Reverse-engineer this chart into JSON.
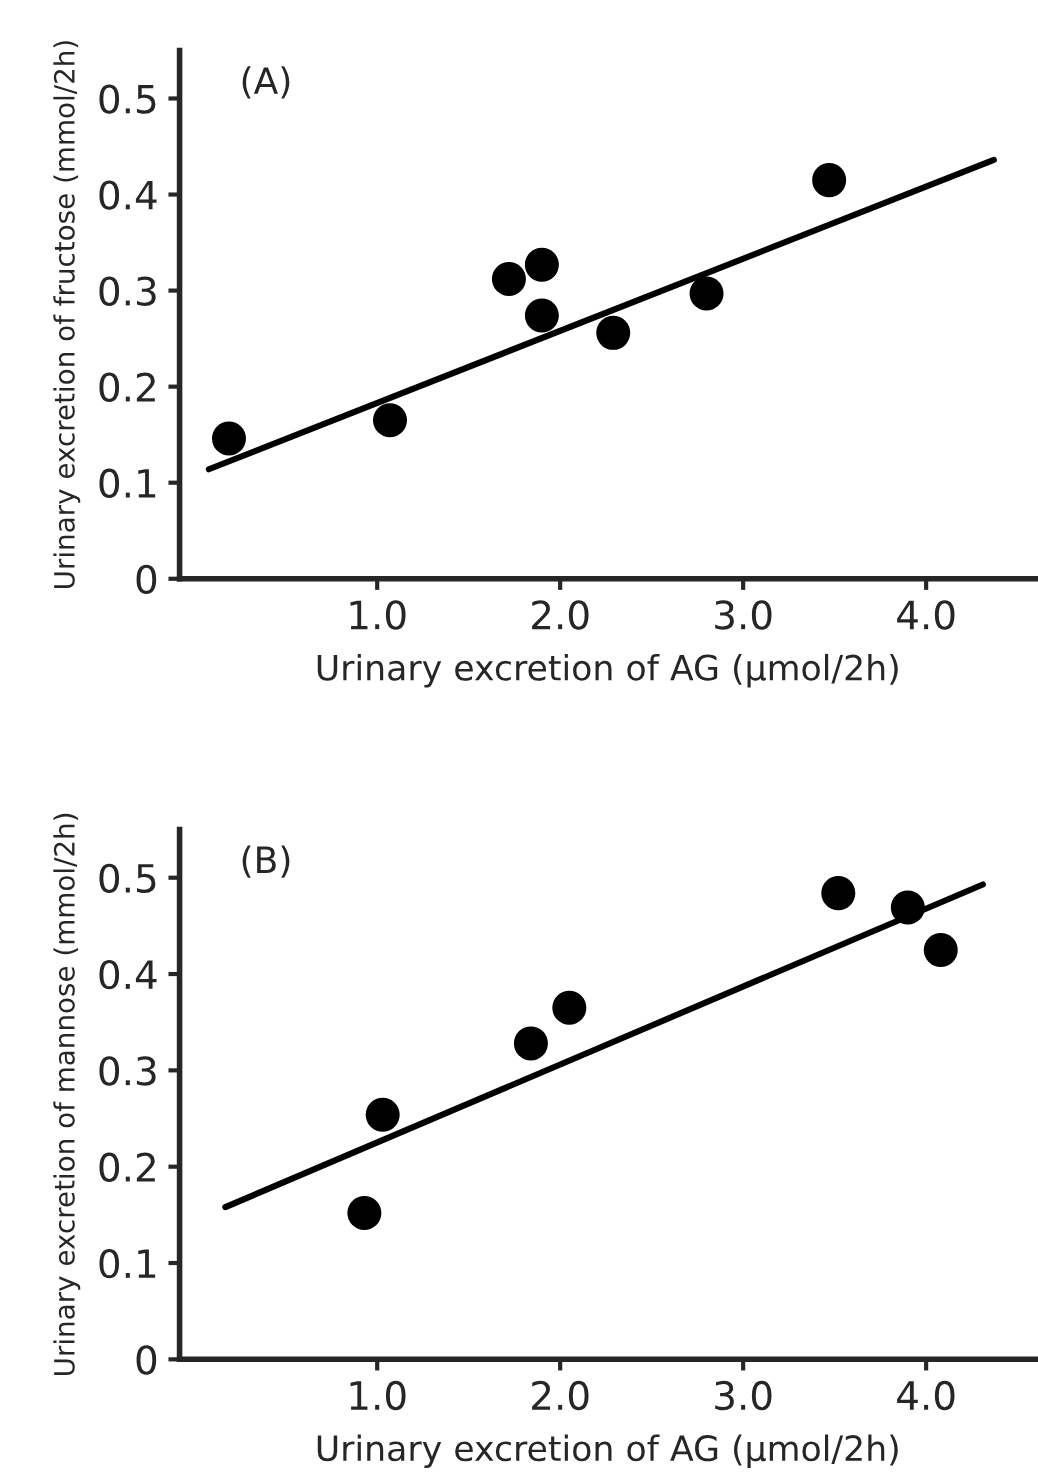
{
  "chart_data": [
    {
      "type": "scatter",
      "title": "(A)",
      "xlabel": "Urinary excretion of AG (μmol/2h)",
      "ylabel": "Urinary excretion of fructose (mmol/2h)",
      "xlim": [
        -0.08,
        4.6
      ],
      "ylim": [
        0,
        0.55
      ],
      "xticks": [
        {
          "value": 1,
          "label": "1.0"
        },
        {
          "value": 2,
          "label": "2.0"
        },
        {
          "value": 3,
          "label": "3.0"
        },
        {
          "value": 4,
          "label": "4.0"
        }
      ],
      "yticks": [
        0,
        0.1,
        0.2,
        0.3,
        0.4,
        0.5
      ],
      "series": [
        {
          "color": "#000000",
          "marker": "circle",
          "x": [
            0.19,
            1.07,
            1.72,
            1.9,
            1.9,
            2.29,
            2.8,
            3.47
          ],
          "values": [
            0.146,
            0.165,
            0.312,
            0.327,
            0.274,
            0.256,
            0.297,
            0.415
          ]
        },
        {
          "type": "line",
          "color": "#000000",
          "line_style": "solid",
          "x": [
            0.08,
            4.37
          ],
          "values": [
            0.114,
            0.436
          ]
        }
      ]
    },
    {
      "type": "scatter",
      "title": "(B)",
      "xlabel": "Urinary excretion of AG (μmol/2h)",
      "ylabel": "Urinary excretion of mannose (mmol/2h)",
      "xlim": [
        -0.08,
        4.6
      ],
      "ylim": [
        0,
        0.55
      ],
      "xticks": [
        {
          "value": 1,
          "label": "1.0"
        },
        {
          "value": 2,
          "label": "2.0"
        },
        {
          "value": 3,
          "label": "3.0"
        },
        {
          "value": 4,
          "label": "4.0"
        }
      ],
      "yticks": [
        0,
        0.1,
        0.2,
        0.3,
        0.4,
        0.5
      ],
      "series": [
        {
          "color": "#000000",
          "marker": "circle",
          "x": [
            0.93,
            1.03,
            1.84,
            2.05,
            3.52,
            3.9,
            4.08
          ],
          "values": [
            0.152,
            0.254,
            0.328,
            0.365,
            0.484,
            0.469,
            0.425
          ]
        },
        {
          "type": "line",
          "color": "#000000",
          "line_style": "solid",
          "x": [
            0.17,
            4.31
          ],
          "values": [
            0.158,
            0.493
          ]
        }
      ]
    }
  ]
}
